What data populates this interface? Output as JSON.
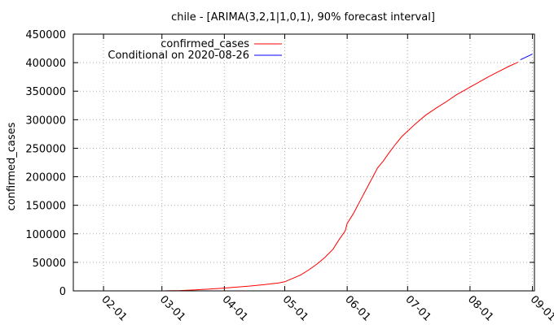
{
  "chart_data": {
    "type": "line",
    "title": "chile -  [ARIMA(3,2,1|1,0,1), 90% forecast interval]",
    "xlabel": "",
    "ylabel": "confirmed_cases",
    "ylim": [
      0,
      450000
    ],
    "xlim": [
      "2020-01-17",
      "2020-09-02"
    ],
    "y_ticks": [
      0,
      50000,
      100000,
      150000,
      200000,
      250000,
      300000,
      350000,
      400000,
      450000
    ],
    "x_ticks": [
      "2020-02-01",
      "2020-03-01",
      "2020-04-01",
      "2020-05-01",
      "2020-06-01",
      "2020-07-01",
      "2020-08-01",
      "2020-09-01"
    ],
    "x_tick_labels": [
      "02-01",
      "03-01",
      "04-01",
      "05-01",
      "06-01",
      "07-01",
      "08-01",
      "09-01"
    ],
    "grid": true,
    "legend_position": "top-right",
    "series": [
      {
        "name": "confirmed_cases",
        "color": "#ff0000",
        "x": [
          "2020-03-03",
          "2020-03-10",
          "2020-03-17",
          "2020-03-24",
          "2020-03-31",
          "2020-04-07",
          "2020-04-14",
          "2020-04-21",
          "2020-04-28",
          "2020-05-01",
          "2020-05-05",
          "2020-05-09",
          "2020-05-13",
          "2020-05-17",
          "2020-05-21",
          "2020-05-25",
          "2020-05-28",
          "2020-05-31",
          "2020-06-01",
          "2020-06-04",
          "2020-06-07",
          "2020-06-10",
          "2020-06-13",
          "2020-06-16",
          "2020-06-19",
          "2020-06-22",
          "2020-06-25",
          "2020-06-28",
          "2020-07-01",
          "2020-07-05",
          "2020-07-10",
          "2020-07-15",
          "2020-07-20",
          "2020-07-25",
          "2020-07-31",
          "2020-08-05",
          "2020-08-10",
          "2020-08-15",
          "2020-08-20",
          "2020-08-25"
        ],
        "y": [
          100,
          500,
          1500,
          3000,
          4500,
          6500,
          8500,
          11000,
          14000,
          16000,
          22000,
          28000,
          37000,
          47000,
          59000,
          73000,
          90000,
          105000,
          118000,
          135000,
          155000,
          175000,
          195000,
          215000,
          228000,
          243000,
          257000,
          270000,
          280000,
          293000,
          308000,
          320000,
          331000,
          343000,
          355000,
          365000,
          375000,
          384000,
          393000,
          401000
        ]
      },
      {
        "name": "Conditional on 2020-08-26",
        "color": "#0000ff",
        "x": [
          "2020-08-26",
          "2020-08-29",
          "2020-09-01"
        ],
        "y": [
          405000,
          410000,
          415000
        ]
      }
    ]
  }
}
